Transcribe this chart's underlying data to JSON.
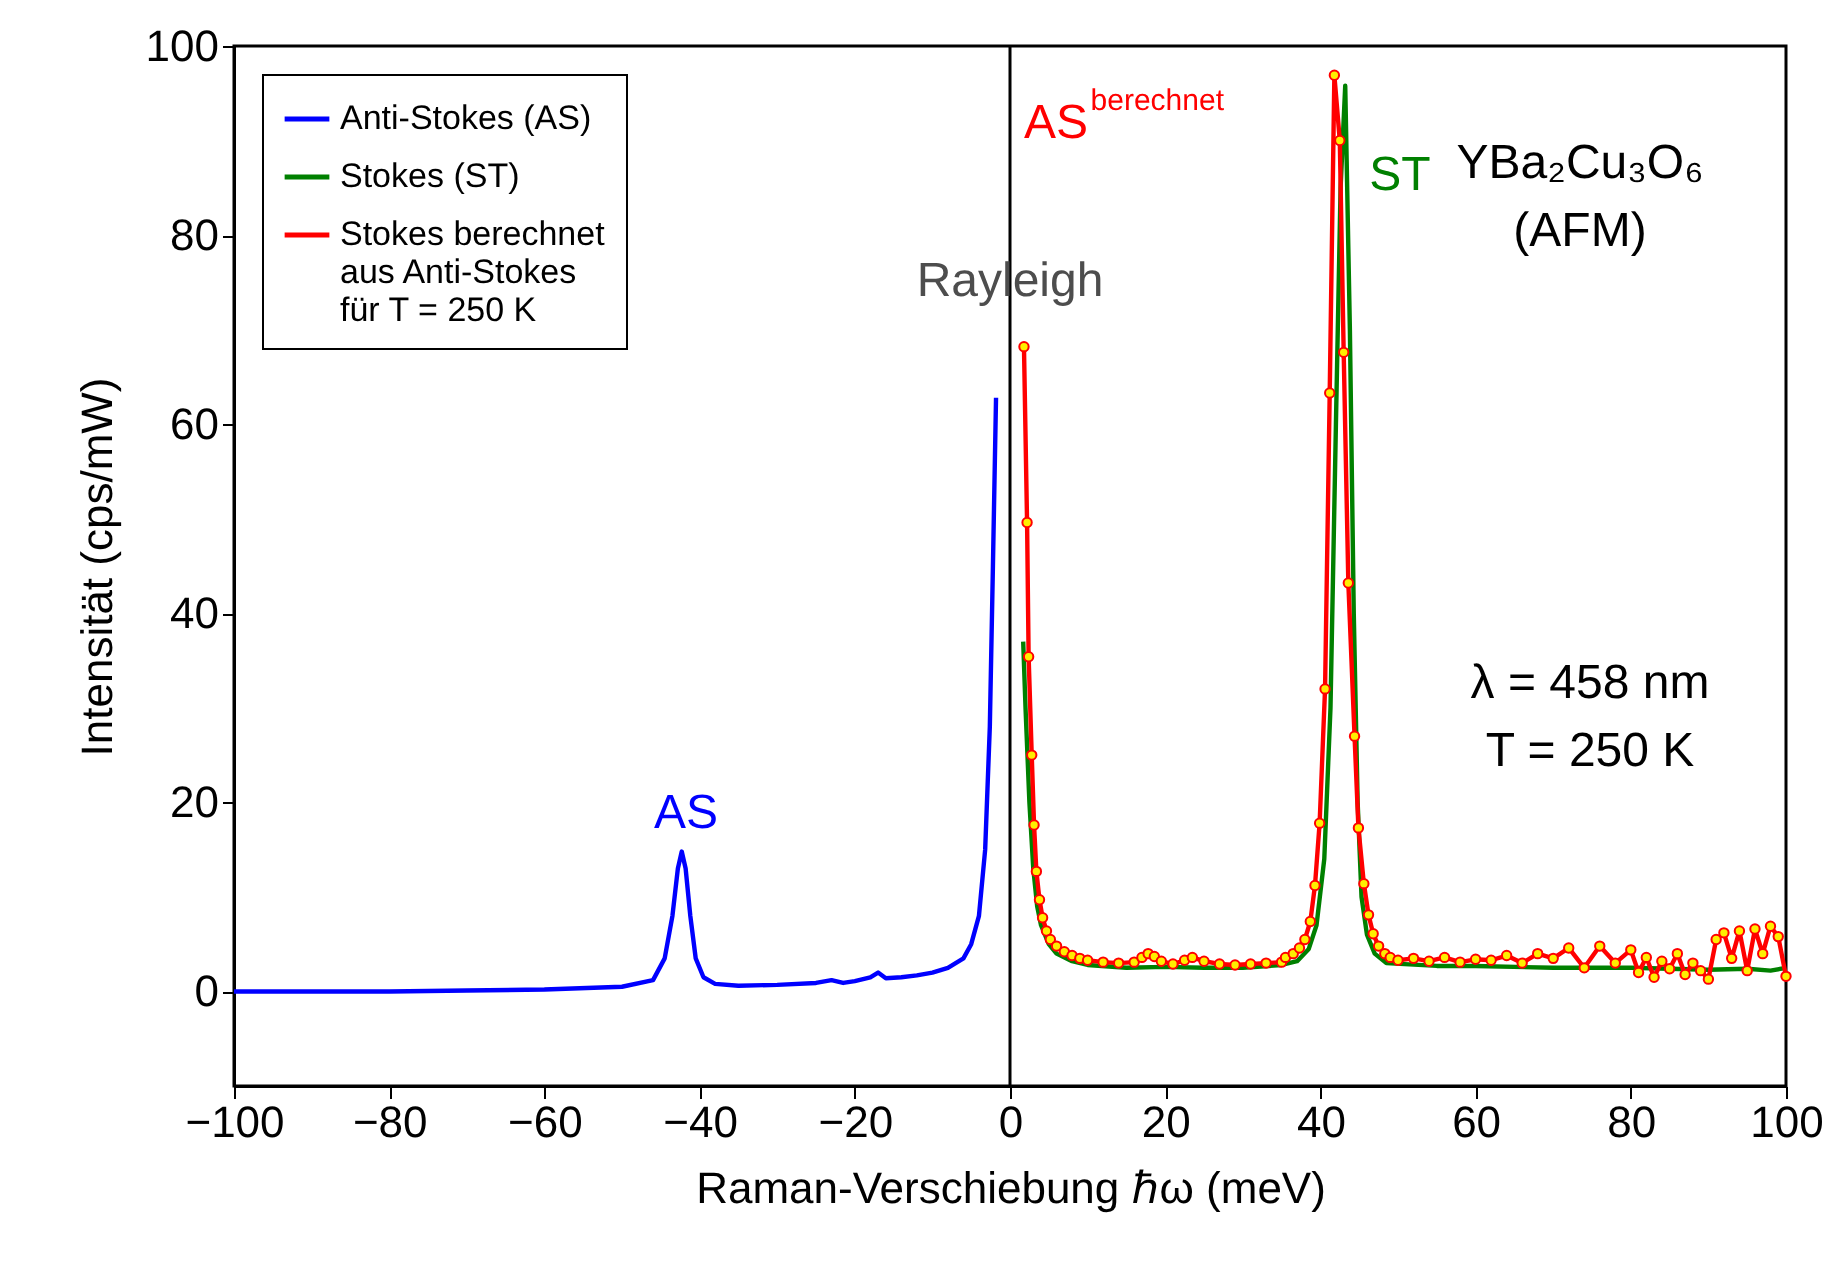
{
  "chart_data": {
    "type": "line",
    "xlabel": "Raman-Verschiebung ℏω (meV)",
    "ylabel": "Intensität (cps/mW)",
    "xlim": [
      -100,
      100
    ],
    "xticks": [
      -100,
      -80,
      -60,
      -40,
      -20,
      0,
      20,
      40,
      60,
      80,
      100
    ],
    "ylim": [
      -10,
      100
    ],
    "yticks": [
      0,
      20,
      40,
      60,
      80,
      100
    ],
    "grid": false,
    "legend": "top left",
    "ref_lines": [
      {
        "axis": "x",
        "value": 0,
        "color": "#000000"
      }
    ],
    "annotations": [
      "AS",
      {
        "text": "Rayleigh",
        "x": 0,
        "y": 75
      },
      "AS$^{berechnet}$",
      "ST",
      "YBa₂Cu₃O₆\n(AFM)",
      "λ = 458 nm\nT = 250 K"
    ],
    "series": [
      {
        "name": "Anti-Stokes (AS)",
        "color": "#0000ff",
        "marker": "none",
        "x": [
          -100,
          -90,
          -80,
          -70,
          -60,
          -50,
          -46,
          -44.5,
          -43.5,
          -42.8,
          -42.3,
          -41.8,
          -41.2,
          -40.5,
          -39.5,
          -38,
          -35,
          -30,
          -25,
          -23,
          -21.5,
          -20,
          -18,
          -17,
          -16,
          -14,
          -12,
          -10,
          -8,
          -6,
          -5,
          -4,
          -3.2,
          -2.6,
          -2.2,
          -1.8
        ],
        "values": [
          0,
          0,
          0,
          0.1,
          0.2,
          0.5,
          1.2,
          3.5,
          8,
          13,
          14.8,
          13,
          8,
          3.5,
          1.5,
          0.8,
          0.6,
          0.7,
          0.9,
          1.2,
          0.9,
          1.1,
          1.5,
          2,
          1.4,
          1.5,
          1.7,
          2,
          2.5,
          3.5,
          5,
          8,
          15,
          28,
          45,
          62.8
        ]
      },
      {
        "name": "Stokes (ST)",
        "color": "#008000",
        "marker": "none",
        "x": [
          1.7,
          2,
          2.5,
          3,
          3.5,
          4,
          5,
          6,
          8,
          10,
          15,
          20,
          25,
          30,
          35,
          37,
          38.5,
          39.5,
          40.5,
          41.3,
          42,
          42.6,
          43.2,
          43.8,
          44.3,
          44.8,
          45.3,
          46,
          47,
          48.5,
          55,
          60,
          70,
          80,
          90,
          95,
          98,
          100
        ],
        "values": [
          37,
          30,
          20,
          13,
          9,
          7,
          5,
          4,
          3.2,
          2.8,
          2.5,
          2.6,
          2.5,
          2.5,
          2.8,
          3.2,
          4.5,
          7,
          14,
          30,
          60,
          85,
          95.8,
          70,
          40,
          20,
          10,
          6,
          4,
          3,
          2.7,
          2.7,
          2.5,
          2.5,
          2.3,
          2.4,
          2.2,
          2.5
        ]
      },
      {
        "name": "Stokes berechnet\naus Anti-Stokes\nfür T = 250 K",
        "color": "#ff0000",
        "marker": "circle",
        "x": [
          1.8,
          2.2,
          2.4,
          2.8,
          3.1,
          3.4,
          3.8,
          4.2,
          4.7,
          5.2,
          6,
          7,
          8,
          9,
          10,
          12,
          14,
          16,
          17,
          17.8,
          18.6,
          19.5,
          21,
          22.5,
          23.5,
          25,
          27,
          29,
          31,
          33,
          35,
          35.5,
          36.5,
          37.3,
          38,
          38.7,
          39.3,
          39.9,
          40.6,
          41.2,
          41.8,
          42.5,
          43.0,
          43.6,
          44.4,
          44.9,
          45.6,
          46.2,
          46.8,
          47.5,
          48.3,
          49,
          50,
          52,
          54,
          56,
          58,
          60,
          62,
          64,
          66,
          68,
          70,
          72,
          74,
          76,
          78,
          80,
          81,
          82,
          83,
          84,
          85,
          86,
          87,
          88,
          89,
          90,
          91,
          92,
          93,
          94,
          95,
          96,
          97,
          98,
          99,
          100
        ],
        "values": [
          68.2,
          49.6,
          35.4,
          25,
          17.6,
          12.7,
          9.7,
          7.8,
          6.4,
          5.5,
          4.8,
          4.2,
          3.8,
          3.5,
          3.3,
          3.1,
          3.0,
          3.1,
          3.6,
          4.0,
          3.7,
          3.2,
          2.9,
          3.3,
          3.6,
          3.2,
          2.9,
          2.8,
          2.9,
          3.0,
          3.1,
          3.6,
          4.0,
          4.6,
          5.5,
          7.4,
          11.2,
          17.8,
          32,
          63.3,
          96.9,
          90,
          67.6,
          43.2,
          27,
          17.3,
          11.4,
          8.1,
          6.1,
          4.8,
          4.0,
          3.6,
          3.3,
          3.5,
          3.2,
          3.6,
          3.1,
          3.4,
          3.3,
          3.8,
          3.0,
          4.0,
          3.5,
          4.6,
          2.5,
          4.8,
          3.0,
          4.4,
          2.0,
          3.6,
          1.5,
          3.2,
          2.4,
          4.0,
          1.8,
          3.0,
          2.2,
          1.3,
          5.5,
          6.2,
          3.5,
          6.4,
          2.2,
          6.6,
          4.0,
          6.9,
          5.8,
          1.6
        ]
      }
    ]
  }
}
